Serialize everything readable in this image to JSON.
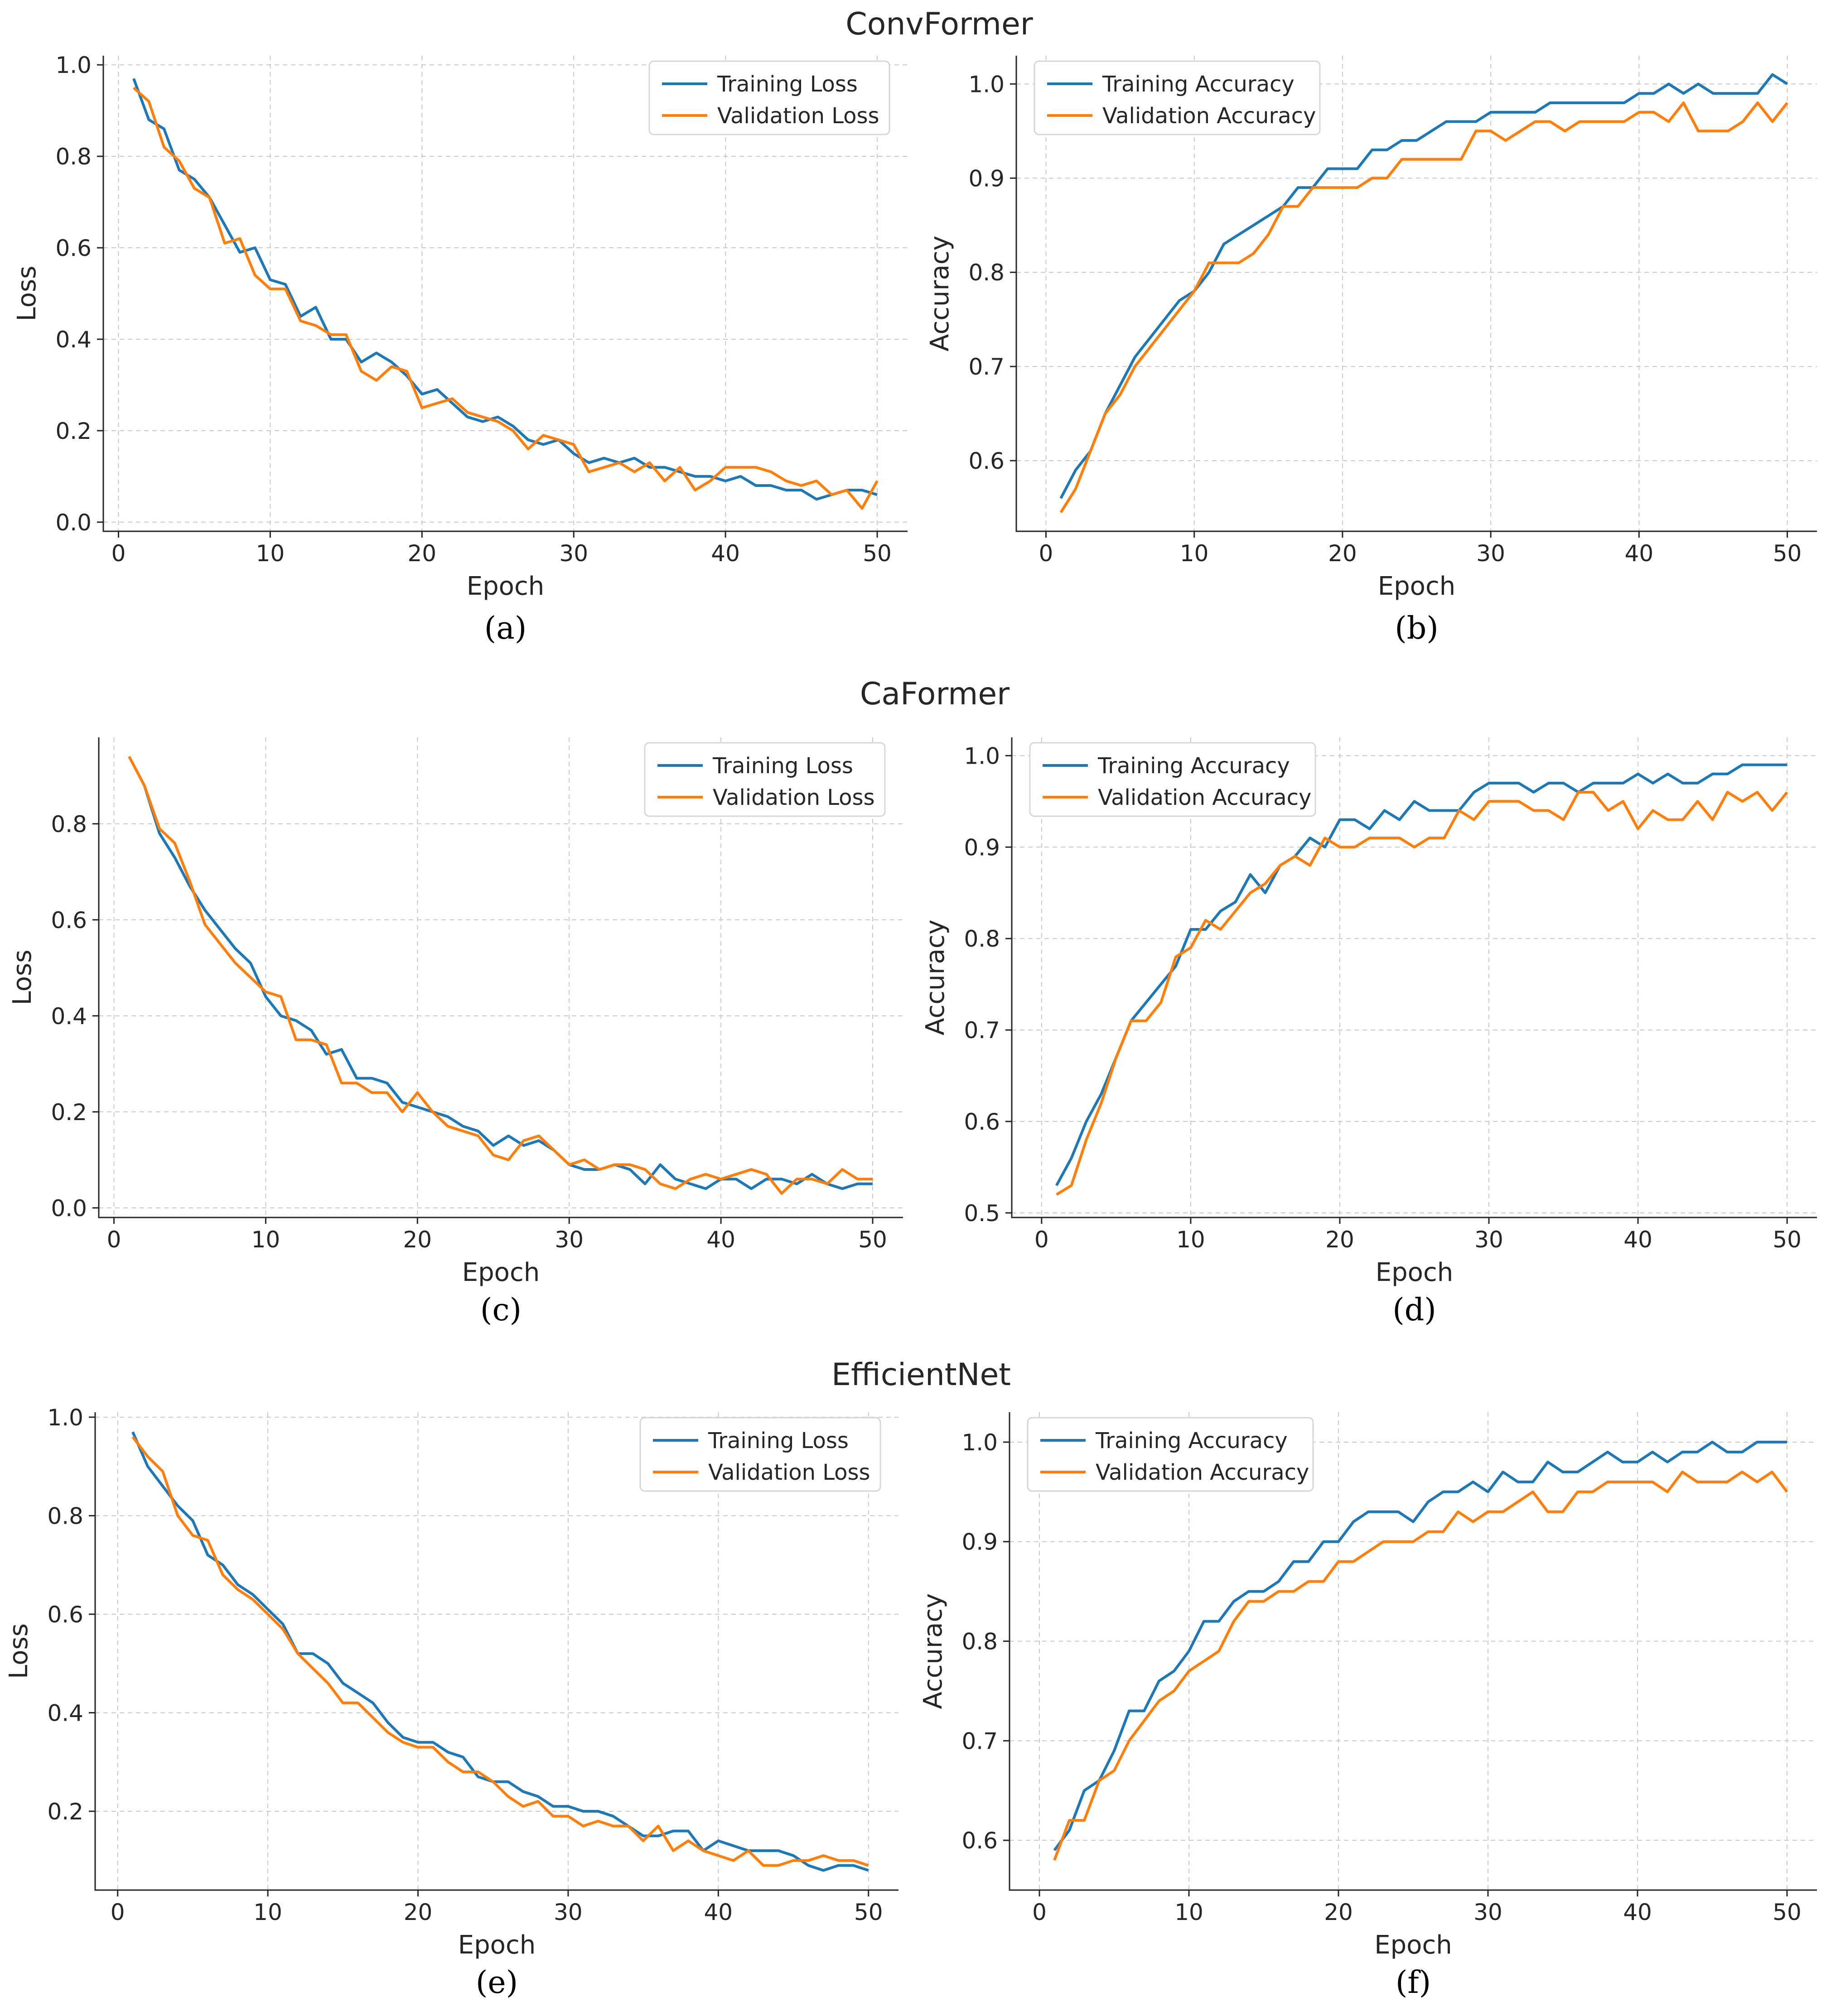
{
  "figure": {
    "group_titles": [
      "ConvFormer",
      "CaFormer",
      "EfficientNet"
    ]
  },
  "chart_data": [
    {
      "id": "a",
      "type": "line",
      "group": "ConvFormer",
      "caption": "(a)",
      "xlabel": "Epoch",
      "ylabel": "Loss",
      "xlim": [
        -1,
        52
      ],
      "ylim": [
        -0.02,
        1.02
      ],
      "xticks": [
        0,
        10,
        20,
        30,
        40,
        50
      ],
      "yticks": [
        0.0,
        0.2,
        0.4,
        0.6,
        0.8,
        1.0
      ],
      "ytick_labels": [
        "0.0",
        "0.2",
        "0.4",
        "0.6",
        "0.8",
        "1.0"
      ],
      "legend_loc": "top-right",
      "x": [
        1,
        2,
        3,
        4,
        5,
        6,
        7,
        8,
        9,
        10,
        11,
        12,
        13,
        14,
        15,
        16,
        17,
        18,
        19,
        20,
        21,
        22,
        23,
        24,
        25,
        26,
        27,
        28,
        29,
        30,
        31,
        32,
        33,
        34,
        35,
        36,
        37,
        38,
        39,
        40,
        41,
        42,
        43,
        44,
        45,
        46,
        47,
        48,
        49,
        50
      ],
      "series": [
        {
          "name": "Training Loss",
          "color": "#1f77b4",
          "values": [
            0.97,
            0.88,
            0.86,
            0.77,
            0.75,
            0.71,
            0.65,
            0.59,
            0.6,
            0.53,
            0.52,
            0.45,
            0.47,
            0.4,
            0.4,
            0.35,
            0.37,
            0.35,
            0.32,
            0.28,
            0.29,
            0.26,
            0.23,
            0.22,
            0.23,
            0.21,
            0.18,
            0.17,
            0.18,
            0.15,
            0.13,
            0.14,
            0.13,
            0.14,
            0.12,
            0.12,
            0.11,
            0.1,
            0.1,
            0.09,
            0.1,
            0.08,
            0.08,
            0.07,
            0.07,
            0.05,
            0.06,
            0.07,
            0.07,
            0.06
          ]
        },
        {
          "name": "Validation Loss",
          "color": "#ff7f0e",
          "values": [
            0.95,
            0.92,
            0.82,
            0.79,
            0.73,
            0.71,
            0.61,
            0.62,
            0.54,
            0.51,
            0.51,
            0.44,
            0.43,
            0.41,
            0.41,
            0.33,
            0.31,
            0.34,
            0.33,
            0.25,
            0.26,
            0.27,
            0.24,
            0.23,
            0.22,
            0.2,
            0.16,
            0.19,
            0.18,
            0.17,
            0.11,
            0.12,
            0.13,
            0.11,
            0.13,
            0.09,
            0.12,
            0.07,
            0.09,
            0.12,
            0.12,
            0.12,
            0.11,
            0.09,
            0.08,
            0.09,
            0.06,
            0.07,
            0.03,
            0.09
          ]
        }
      ]
    },
    {
      "id": "b",
      "type": "line",
      "group": "ConvFormer",
      "caption": "(b)",
      "xlabel": "Epoch",
      "ylabel": "Accuracy",
      "xlim": [
        -2,
        52
      ],
      "ylim": [
        0.525,
        1.03
      ],
      "xticks": [
        0,
        10,
        20,
        30,
        40,
        50
      ],
      "yticks": [
        0.6,
        0.7,
        0.8,
        0.9,
        1.0
      ],
      "ytick_labels": [
        "0.6",
        "0.7",
        "0.8",
        "0.9",
        "1.0"
      ],
      "legend_loc": "top-left",
      "x": [
        1,
        2,
        3,
        4,
        5,
        6,
        7,
        8,
        9,
        10,
        11,
        12,
        13,
        14,
        15,
        16,
        17,
        18,
        19,
        20,
        21,
        22,
        23,
        24,
        25,
        26,
        27,
        28,
        29,
        30,
        31,
        32,
        33,
        34,
        35,
        36,
        37,
        38,
        39,
        40,
        41,
        42,
        43,
        44,
        45,
        46,
        47,
        48,
        49,
        50
      ],
      "series": [
        {
          "name": "Training Accuracy",
          "color": "#1f77b4",
          "values": [
            0.56,
            0.59,
            0.61,
            0.65,
            0.68,
            0.71,
            0.73,
            0.75,
            0.77,
            0.78,
            0.8,
            0.83,
            0.84,
            0.85,
            0.86,
            0.87,
            0.89,
            0.89,
            0.91,
            0.91,
            0.91,
            0.93,
            0.93,
            0.94,
            0.94,
            0.95,
            0.96,
            0.96,
            0.96,
            0.97,
            0.97,
            0.97,
            0.97,
            0.98,
            0.98,
            0.98,
            0.98,
            0.98,
            0.98,
            0.99,
            0.99,
            1.0,
            0.99,
            1.0,
            0.99,
            0.99,
            0.99,
            0.99,
            1.01,
            1.0
          ]
        },
        {
          "name": "Validation Accuracy",
          "color": "#ff7f0e",
          "values": [
            0.545,
            0.57,
            0.61,
            0.65,
            0.67,
            0.7,
            0.72,
            0.74,
            0.76,
            0.78,
            0.81,
            0.81,
            0.81,
            0.82,
            0.84,
            0.87,
            0.87,
            0.89,
            0.89,
            0.89,
            0.89,
            0.9,
            0.9,
            0.92,
            0.92,
            0.92,
            0.92,
            0.92,
            0.95,
            0.95,
            0.94,
            0.95,
            0.96,
            0.96,
            0.95,
            0.96,
            0.96,
            0.96,
            0.96,
            0.97,
            0.97,
            0.96,
            0.98,
            0.95,
            0.95,
            0.95,
            0.96,
            0.98,
            0.96,
            0.98
          ]
        }
      ]
    },
    {
      "id": "c",
      "type": "line",
      "group": "CaFormer",
      "caption": "(c)",
      "xlabel": "Epoch",
      "ylabel": "Loss",
      "xlim": [
        -1,
        52
      ],
      "ylim": [
        -0.02,
        0.98
      ],
      "xticks": [
        0,
        10,
        20,
        30,
        40,
        50
      ],
      "yticks": [
        0.0,
        0.2,
        0.4,
        0.6,
        0.8
      ],
      "ytick_labels": [
        "0.0",
        "0.2",
        "0.4",
        "0.6",
        "0.8"
      ],
      "legend_loc": "top-right",
      "x": [
        1,
        2,
        3,
        4,
        5,
        6,
        7,
        8,
        9,
        10,
        11,
        12,
        13,
        14,
        15,
        16,
        17,
        18,
        19,
        20,
        21,
        22,
        23,
        24,
        25,
        26,
        27,
        28,
        29,
        30,
        31,
        32,
        33,
        34,
        35,
        36,
        37,
        38,
        39,
        40,
        41,
        42,
        43,
        44,
        45,
        46,
        47,
        48,
        49,
        50
      ],
      "series": [
        {
          "name": "Training Loss",
          "color": "#1f77b4",
          "values": [
            0.94,
            0.88,
            0.78,
            0.73,
            0.67,
            0.62,
            0.58,
            0.54,
            0.51,
            0.44,
            0.4,
            0.39,
            0.37,
            0.32,
            0.33,
            0.27,
            0.27,
            0.26,
            0.22,
            0.21,
            0.2,
            0.19,
            0.17,
            0.16,
            0.13,
            0.15,
            0.13,
            0.14,
            0.12,
            0.09,
            0.08,
            0.08,
            0.09,
            0.08,
            0.05,
            0.09,
            0.06,
            0.05,
            0.04,
            0.06,
            0.06,
            0.04,
            0.06,
            0.06,
            0.05,
            0.07,
            0.05,
            0.04,
            0.05,
            0.05
          ]
        },
        {
          "name": "Validation Loss",
          "color": "#ff7f0e",
          "values": [
            0.94,
            0.88,
            0.79,
            0.76,
            0.68,
            0.59,
            0.55,
            0.51,
            0.48,
            0.45,
            0.44,
            0.35,
            0.35,
            0.34,
            0.26,
            0.26,
            0.24,
            0.24,
            0.2,
            0.24,
            0.2,
            0.17,
            0.16,
            0.15,
            0.11,
            0.1,
            0.14,
            0.15,
            0.12,
            0.09,
            0.1,
            0.08,
            0.09,
            0.09,
            0.08,
            0.05,
            0.04,
            0.06,
            0.07,
            0.06,
            0.07,
            0.08,
            0.07,
            0.03,
            0.06,
            0.06,
            0.05,
            0.08,
            0.06,
            0.06
          ]
        }
      ]
    },
    {
      "id": "d",
      "type": "line",
      "group": "CaFormer",
      "caption": "(d)",
      "xlabel": "Epoch",
      "ylabel": "Accuracy",
      "xlim": [
        -2,
        52
      ],
      "ylim": [
        0.495,
        1.02
      ],
      "xticks": [
        0,
        10,
        20,
        30,
        40,
        50
      ],
      "yticks": [
        0.5,
        0.6,
        0.7,
        0.8,
        0.9,
        1.0
      ],
      "ytick_labels": [
        "0.5",
        "0.6",
        "0.7",
        "0.8",
        "0.9",
        "1.0"
      ],
      "legend_loc": "top-left",
      "x": [
        1,
        2,
        3,
        4,
        5,
        6,
        7,
        8,
        9,
        10,
        11,
        12,
        13,
        14,
        15,
        16,
        17,
        18,
        19,
        20,
        21,
        22,
        23,
        24,
        25,
        26,
        27,
        28,
        29,
        30,
        31,
        32,
        33,
        34,
        35,
        36,
        37,
        38,
        39,
        40,
        41,
        42,
        43,
        44,
        45,
        46,
        47,
        48,
        49,
        50
      ],
      "series": [
        {
          "name": "Training Accuracy",
          "color": "#1f77b4",
          "values": [
            0.53,
            0.56,
            0.6,
            0.63,
            0.67,
            0.71,
            0.73,
            0.75,
            0.77,
            0.81,
            0.81,
            0.83,
            0.84,
            0.87,
            0.85,
            0.88,
            0.89,
            0.91,
            0.9,
            0.93,
            0.93,
            0.92,
            0.94,
            0.93,
            0.95,
            0.94,
            0.94,
            0.94,
            0.96,
            0.97,
            0.97,
            0.97,
            0.96,
            0.97,
            0.97,
            0.96,
            0.97,
            0.97,
            0.97,
            0.98,
            0.97,
            0.98,
            0.97,
            0.97,
            0.98,
            0.98,
            0.99,
            0.99,
            0.99,
            0.99
          ]
        },
        {
          "name": "Validation Accuracy",
          "color": "#ff7f0e",
          "values": [
            0.52,
            0.53,
            0.58,
            0.62,
            0.67,
            0.71,
            0.71,
            0.73,
            0.78,
            0.79,
            0.82,
            0.81,
            0.83,
            0.85,
            0.86,
            0.88,
            0.89,
            0.88,
            0.91,
            0.9,
            0.9,
            0.91,
            0.91,
            0.91,
            0.9,
            0.91,
            0.91,
            0.94,
            0.93,
            0.95,
            0.95,
            0.95,
            0.94,
            0.94,
            0.93,
            0.96,
            0.96,
            0.94,
            0.95,
            0.92,
            0.94,
            0.93,
            0.93,
            0.95,
            0.93,
            0.96,
            0.95,
            0.96,
            0.94,
            0.96
          ]
        }
      ]
    },
    {
      "id": "e",
      "type": "line",
      "group": "EfficientNet",
      "caption": "(e)",
      "xlabel": "Epoch",
      "ylabel": "Loss",
      "xlim": [
        -1.5,
        52
      ],
      "ylim": [
        0.04,
        1.01
      ],
      "xticks": [
        0,
        10,
        20,
        30,
        40,
        50
      ],
      "yticks": [
        0.2,
        0.4,
        0.6,
        0.8,
        1.0
      ],
      "ytick_labels": [
        "0.2",
        "0.4",
        "0.6",
        "0.8",
        "1.0"
      ],
      "legend_loc": "top-right",
      "x": [
        1,
        2,
        3,
        4,
        5,
        6,
        7,
        8,
        9,
        10,
        11,
        12,
        13,
        14,
        15,
        16,
        17,
        18,
        19,
        20,
        21,
        22,
        23,
        24,
        25,
        26,
        27,
        28,
        29,
        30,
        31,
        32,
        33,
        34,
        35,
        36,
        37,
        38,
        39,
        40,
        41,
        42,
        43,
        44,
        45,
        46,
        47,
        48,
        49,
        50
      ],
      "series": [
        {
          "name": "Training Loss",
          "color": "#1f77b4",
          "values": [
            0.97,
            0.9,
            0.86,
            0.82,
            0.79,
            0.72,
            0.7,
            0.66,
            0.64,
            0.61,
            0.58,
            0.52,
            0.52,
            0.5,
            0.46,
            0.44,
            0.42,
            0.38,
            0.35,
            0.34,
            0.34,
            0.32,
            0.31,
            0.27,
            0.26,
            0.26,
            0.24,
            0.23,
            0.21,
            0.21,
            0.2,
            0.2,
            0.19,
            0.17,
            0.15,
            0.15,
            0.16,
            0.16,
            0.12,
            0.14,
            0.13,
            0.12,
            0.12,
            0.12,
            0.11,
            0.09,
            0.08,
            0.09,
            0.09,
            0.08
          ]
        },
        {
          "name": "Validation Loss",
          "color": "#ff7f0e",
          "values": [
            0.96,
            0.92,
            0.89,
            0.8,
            0.76,
            0.75,
            0.68,
            0.65,
            0.63,
            0.6,
            0.57,
            0.52,
            0.49,
            0.46,
            0.42,
            0.42,
            0.39,
            0.36,
            0.34,
            0.33,
            0.33,
            0.3,
            0.28,
            0.28,
            0.26,
            0.23,
            0.21,
            0.22,
            0.19,
            0.19,
            0.17,
            0.18,
            0.17,
            0.17,
            0.14,
            0.17,
            0.12,
            0.14,
            0.12,
            0.11,
            0.1,
            0.12,
            0.09,
            0.09,
            0.1,
            0.1,
            0.11,
            0.1,
            0.1,
            0.09
          ]
        }
      ]
    },
    {
      "id": "f",
      "type": "line",
      "group": "EfficientNet",
      "caption": "(f)",
      "xlabel": "Epoch",
      "ylabel": "Accuracy",
      "xlim": [
        -2,
        52
      ],
      "ylim": [
        0.55,
        1.03
      ],
      "xticks": [
        0,
        10,
        20,
        30,
        40,
        50
      ],
      "yticks": [
        0.6,
        0.7,
        0.8,
        0.9,
        1.0
      ],
      "ytick_labels": [
        "0.6",
        "0.7",
        "0.8",
        "0.9",
        "1.0"
      ],
      "legend_loc": "top-left",
      "x": [
        1,
        2,
        3,
        4,
        5,
        6,
        7,
        8,
        9,
        10,
        11,
        12,
        13,
        14,
        15,
        16,
        17,
        18,
        19,
        20,
        21,
        22,
        23,
        24,
        25,
        26,
        27,
        28,
        29,
        30,
        31,
        32,
        33,
        34,
        35,
        36,
        37,
        38,
        39,
        40,
        41,
        42,
        43,
        44,
        45,
        46,
        47,
        48,
        49,
        50
      ],
      "series": [
        {
          "name": "Training Accuracy",
          "color": "#1f77b4",
          "values": [
            0.59,
            0.61,
            0.65,
            0.66,
            0.69,
            0.73,
            0.73,
            0.76,
            0.77,
            0.79,
            0.82,
            0.82,
            0.84,
            0.85,
            0.85,
            0.86,
            0.88,
            0.88,
            0.9,
            0.9,
            0.92,
            0.93,
            0.93,
            0.93,
            0.92,
            0.94,
            0.95,
            0.95,
            0.96,
            0.95,
            0.97,
            0.96,
            0.96,
            0.98,
            0.97,
            0.97,
            0.98,
            0.99,
            0.98,
            0.98,
            0.99,
            0.98,
            0.99,
            0.99,
            1.0,
            0.99,
            0.99,
            1.0,
            1.0,
            1.0
          ]
        },
        {
          "name": "Validation Accuracy",
          "color": "#ff7f0e",
          "values": [
            0.58,
            0.62,
            0.62,
            0.66,
            0.67,
            0.7,
            0.72,
            0.74,
            0.75,
            0.77,
            0.78,
            0.79,
            0.82,
            0.84,
            0.84,
            0.85,
            0.85,
            0.86,
            0.86,
            0.88,
            0.88,
            0.89,
            0.9,
            0.9,
            0.9,
            0.91,
            0.91,
            0.93,
            0.92,
            0.93,
            0.93,
            0.94,
            0.95,
            0.93,
            0.93,
            0.95,
            0.95,
            0.96,
            0.96,
            0.96,
            0.96,
            0.95,
            0.97,
            0.96,
            0.96,
            0.96,
            0.97,
            0.96,
            0.97,
            0.95
          ]
        }
      ]
    }
  ]
}
